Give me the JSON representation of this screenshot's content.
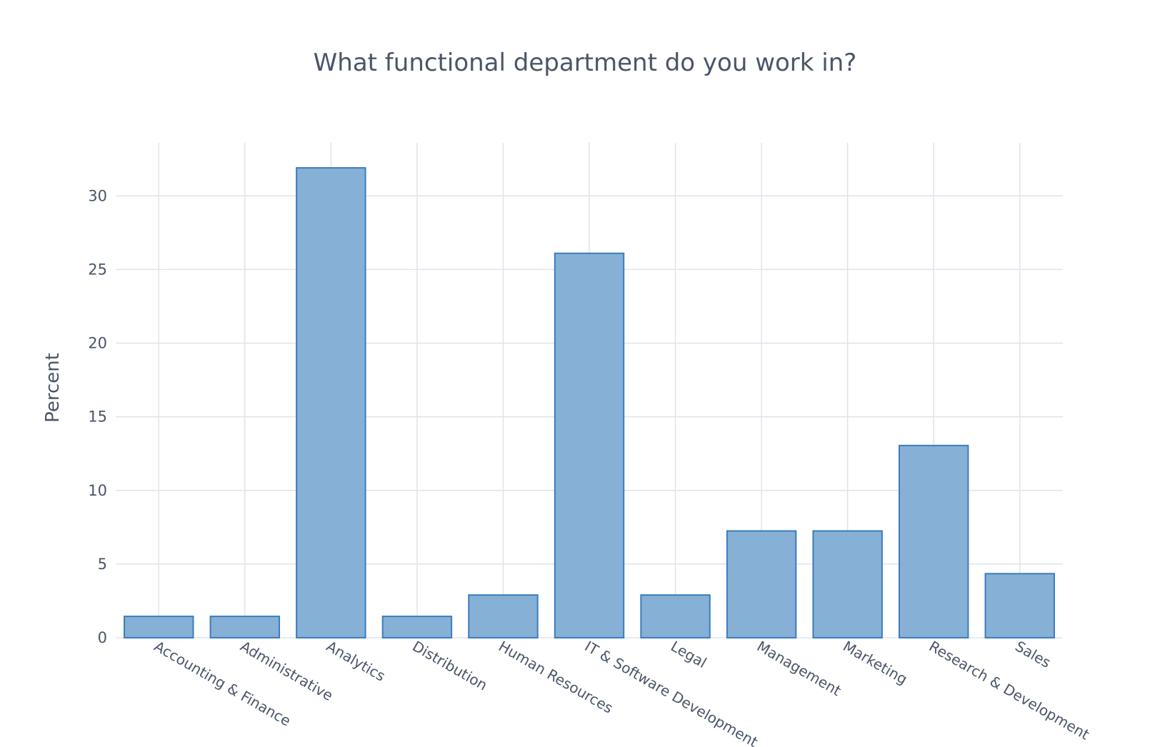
{
  "colors": {
    "bar_fill": "#86b0d6",
    "bar_stroke": "#3a7dbd",
    "grid": "#dfe3eb",
    "text": "#4a5568",
    "background": "#ffffff"
  },
  "chart_data": {
    "type": "bar",
    "title": "What functional department do you work in?",
    "xlabel": "",
    "ylabel": "Percent",
    "categories": [
      "Accounting & Finance",
      "Administrative",
      "Analytics",
      "Distribution",
      "Human Resources",
      "IT & Software Development",
      "Legal",
      "Management",
      "Marketing",
      "Research & Development",
      "Sales"
    ],
    "values": [
      1.45,
      1.45,
      31.9,
      1.45,
      2.9,
      26.1,
      2.9,
      7.25,
      7.25,
      13.05,
      4.35
    ],
    "ylim": [
      0,
      33.6
    ],
    "yticks": [
      0,
      5,
      10,
      15,
      20,
      25,
      30
    ],
    "grid": true,
    "legend": "none"
  }
}
